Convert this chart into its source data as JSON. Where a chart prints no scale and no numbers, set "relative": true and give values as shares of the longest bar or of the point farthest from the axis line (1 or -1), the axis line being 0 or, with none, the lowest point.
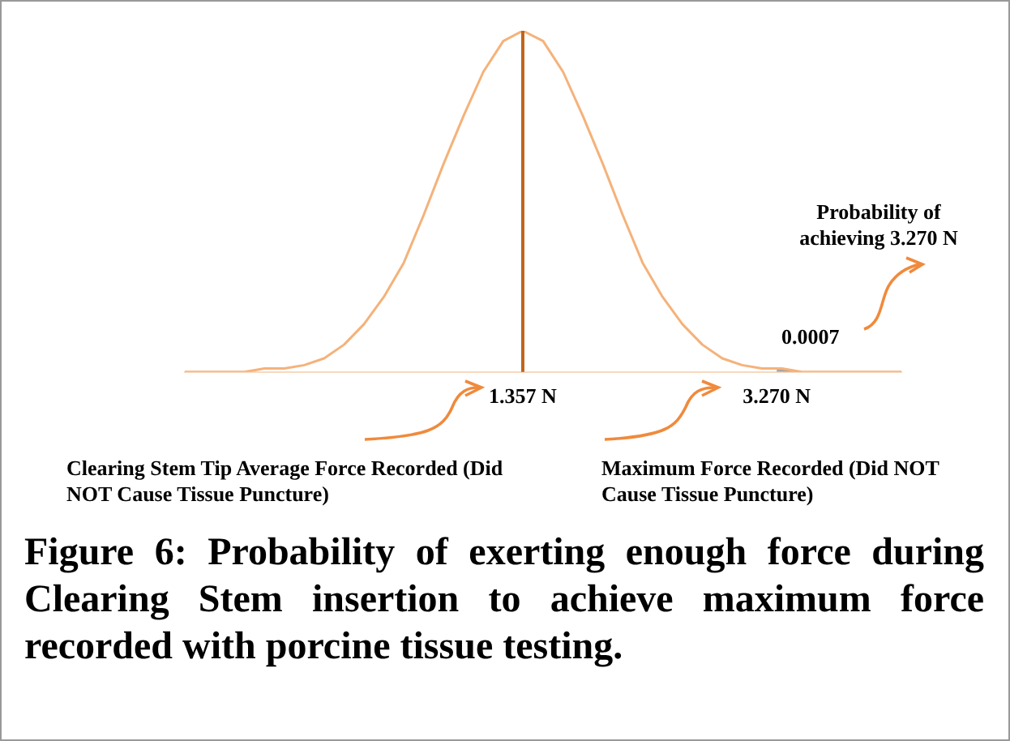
{
  "chart_data": {
    "type": "line",
    "title": "Figure 6: Probability of exerting enough force during Clearing Stem insertion to achieve maximum force recorded with porcine tissue testing.",
    "relative": true,
    "grid": false,
    "legend": false,
    "tick_labels": "x",
    "marker": "none",
    "xlim": [
      -1.19,
      4.21
    ],
    "xticks": [
      {
        "value": 1.357,
        "label": "1.357 N"
      },
      {
        "value": 3.27,
        "label": "3.270 N"
      }
    ],
    "series": [
      {
        "color": "#f5b27a",
        "x": [
          -1.19,
          -1.04,
          -0.89,
          -0.74,
          -0.59,
          -0.44,
          -0.29,
          -0.14,
          0.01,
          0.16,
          0.31,
          0.46,
          0.61,
          0.76,
          0.91,
          1.06,
          1.21,
          1.357,
          1.51,
          1.66,
          1.81,
          1.96,
          2.11,
          2.26,
          2.41,
          2.56,
          2.71,
          2.86,
          3.01,
          3.16,
          3.31,
          3.46,
          3.61,
          3.76,
          3.91,
          4.06,
          4.21
        ],
        "values": [
          0,
          0,
          0,
          0,
          0.01,
          0.01,
          0.02,
          0.04,
          0.08,
          0.14,
          0.22,
          0.32,
          0.46,
          0.61,
          0.75,
          0.88,
          0.97,
          1,
          0.97,
          0.88,
          0.75,
          0.61,
          0.46,
          0.32,
          0.22,
          0.14,
          0.08,
          0.04,
          0.02,
          0.01,
          0.01,
          0,
          0,
          0,
          0,
          0,
          0
        ]
      },
      {
        "type": "area",
        "color": "#a6a6a6",
        "x": [
          3.27,
          3.46,
          3.76,
          4.21
        ],
        "values": [
          0.01,
          0,
          0,
          0
        ]
      }
    ],
    "ref_lines": [
      {
        "axis": "x",
        "value": 1.357,
        "color": "#c0651a"
      }
    ],
    "annotations": [
      "Probability of achieving 3.270 N",
      "0.0007",
      "Clearing Stem Tip Average Force Recorded (Did NOT Cause Tissue Puncture)",
      "Maximum Force Recorded (Did NOT Cause Tissue Puncture)"
    ]
  }
}
